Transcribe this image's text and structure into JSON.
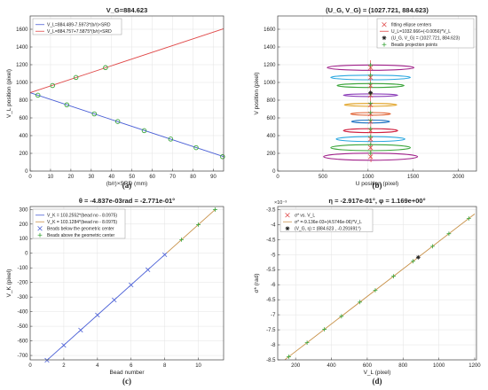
{
  "chart_data": [
    {
      "panel": "(a)",
      "type": "line",
      "title": "V_G=884.623",
      "xlabel": "(b/r)×SRD (mm)",
      "ylabel": "V_L position (pixel)",
      "xlim": [
        0,
        95
      ],
      "ylim": [
        0,
        1750
      ],
      "xticks": [
        0,
        10,
        20,
        30,
        40,
        50,
        60,
        70,
        80,
        90
      ],
      "yticks": [
        0,
        200,
        400,
        600,
        800,
        1000,
        1200,
        1400,
        1600
      ],
      "grid": true,
      "legend": {
        "placement": "top-left",
        "entries": [
          {
            "label": "V_L=884.489-7.5973*(b/r)×SRD",
            "color": "#4a5fd6"
          },
          {
            "label": "V_L=884.757+7.5875*(b/r)×SRD",
            "color": "#e04848"
          }
        ]
      },
      "series": [
        {
          "kind": "line",
          "color": "#4a5fd6",
          "x": [
            0,
            95
          ],
          "y": [
            884.489,
            162.7
          ]
        },
        {
          "kind": "line",
          "color": "#e04848",
          "x": [
            0,
            95
          ],
          "y": [
            884.757,
            1605.6
          ]
        },
        {
          "kind": "points",
          "color": "#3aa53a",
          "marker": "o",
          "x": [
            3.8,
            11,
            22.5,
            37,
            18,
            31.5,
            43,
            56,
            69,
            81.5,
            94.5
          ],
          "y": [
            856,
            965,
            1056,
            1167,
            747,
            645,
            559,
            456,
            361,
            264,
            162
          ]
        }
      ]
    },
    {
      "panel": "(b)",
      "type": "scatter",
      "title": "(U_G, V_G) = (1027.721, 884.623)",
      "xlabel": "U position (pixel)",
      "ylabel": "V position (pixel)",
      "xlim": [
        0,
        2200
      ],
      "ylim": [
        0,
        1750
      ],
      "xticks": [
        0,
        500,
        1000,
        1500,
        2000
      ],
      "yticks": [
        0,
        200,
        400,
        600,
        800,
        1000,
        1200,
        1400,
        1600
      ],
      "grid": true,
      "legend": {
        "placement": "top-right",
        "entries": [
          {
            "label": "fitting ellipse centers",
            "color": "#e04848",
            "marker": "x"
          },
          {
            "label": "U_L=1032.666+(-0.0056)*V_L",
            "color": "#e04848",
            "marker": "line"
          },
          {
            "label": "(U_G, V_G) = (1027.721, 884.623)",
            "color": "#222222",
            "marker": "*"
          },
          {
            "label": "Beads projection points",
            "color": "#3aa53a",
            "marker": "+"
          }
        ]
      },
      "u_line": {
        "intercept": 1032.666,
        "slope": -0.0056
      },
      "center": {
        "u": 1027.721,
        "v": 884.623
      },
      "ellipses": [
        {
          "cu": 1028,
          "cv": 1167,
          "a": 480,
          "b": 30,
          "color": "#a0208a"
        },
        {
          "cu": 1028,
          "cv": 1056,
          "a": 440,
          "b": 26,
          "color": "#2ba7e0"
        },
        {
          "cu": 1028,
          "cv": 965,
          "a": 370,
          "b": 22,
          "color": "#3aa53a"
        },
        {
          "cu": 1028,
          "cv": 856,
          "a": 300,
          "b": 15,
          "color": "#8a3ab8"
        },
        {
          "cu": 1028,
          "cv": 747,
          "a": 290,
          "b": 16,
          "color": "#e0a020"
        },
        {
          "cu": 1028,
          "cv": 645,
          "a": 220,
          "b": 15,
          "color": "#e06030"
        },
        {
          "cu": 1028,
          "cv": 559,
          "a": 210,
          "b": 16,
          "color": "#1a6fc0"
        },
        {
          "cu": 1028,
          "cv": 456,
          "a": 300,
          "b": 22,
          "color": "#d02040"
        },
        {
          "cu": 1028,
          "cv": 361,
          "a": 380,
          "b": 28,
          "color": "#2ba7e0"
        },
        {
          "cu": 1028,
          "cv": 264,
          "a": 440,
          "b": 34,
          "color": "#3aa53a"
        },
        {
          "cu": 1028,
          "cv": 162,
          "a": 520,
          "b": 40,
          "color": "#a0208a"
        }
      ]
    },
    {
      "panel": "(c)",
      "type": "line",
      "title": "θ = -4.837e-03rad = -2.771e-01°",
      "xlabel": "Bead number",
      "ylabel": "V_K (pixel)",
      "xlim": [
        0,
        11.5
      ],
      "ylim": [
        -730,
        320
      ],
      "xticks": [
        0,
        2,
        4,
        6,
        8,
        10
      ],
      "yticks": [
        -700,
        -600,
        -500,
        -400,
        -300,
        -200,
        -100,
        0,
        100,
        200,
        300
      ],
      "grid": true,
      "legend": {
        "placement": "top-left",
        "entries": [
          {
            "label": "V_K = 103.2552*(bead no - 8.0975)",
            "color": "#4a5fd6",
            "marker": "line"
          },
          {
            "label": "V_K = 103.1284*(bead no - 8.0975)",
            "color": "#c8924a",
            "marker": "line"
          },
          {
            "label": "Beads below the geometric center",
            "color": "#4a5fd6",
            "marker": "x"
          },
          {
            "label": "Beads above the geometric center",
            "color": "#3aa53a",
            "marker": "+"
          }
        ]
      },
      "series": [
        {
          "kind": "line",
          "color": "#4a5fd6",
          "x": [
            1,
            8.0975
          ],
          "y": [
            -732.8,
            0
          ]
        },
        {
          "kind": "line",
          "color": "#c8924a",
          "x": [
            8.0975,
            11
          ],
          "y": [
            0,
            299.3
          ]
        },
        {
          "kind": "points",
          "color": "#4a5fd6",
          "marker": "x",
          "x": [
            1,
            2,
            3,
            4,
            5,
            6,
            7,
            8
          ],
          "y": [
            -733,
            -630,
            -526,
            -423,
            -320,
            -217,
            -113,
            -10
          ]
        },
        {
          "kind": "points",
          "color": "#3aa53a",
          "marker": "+",
          "x": [
            9,
            10,
            11
          ],
          "y": [
            93,
            196,
            299
          ]
        }
      ]
    },
    {
      "panel": "(d)",
      "type": "line",
      "title": "η = -2.917e-01°,  φ = 1.169e+00°",
      "xlabel": "V_L (pixel)",
      "ylabel": "σ* (rad)",
      "scale_label": "×10⁻³",
      "xlim": [
        100,
        1210
      ],
      "ylim": [
        -8.5,
        -3.4
      ],
      "xticks": [
        200,
        400,
        600,
        800,
        1000,
        1200
      ],
      "yticks": [
        -8.5,
        -8,
        -7.5,
        -7,
        -6.5,
        -6,
        -5.5,
        -5,
        -4.5,
        -4,
        -3.5
      ],
      "grid": true,
      "legend": {
        "placement": "top-left",
        "entries": [
          {
            "label": "σ* vs. V_L",
            "color": "#e04848",
            "marker": "x"
          },
          {
            "label": "σ* =-9.136e-03+(4.5746e-06)*V_L",
            "color": "#c8924a",
            "marker": "line"
          },
          {
            "label": "(V_G, η) = (884.623 , -0.291691°)",
            "color": "#222222",
            "marker": "*"
          }
        ]
      },
      "series": [
        {
          "kind": "line",
          "color": "#c8924a",
          "x": [
            140,
            1200
          ],
          "y": [
            -8.495,
            -3.646
          ]
        },
        {
          "kind": "points",
          "color": "#3aa53a",
          "marker": "+",
          "x": [
            162,
            264,
            361,
            456,
            559,
            645,
            747,
            856,
            965,
            1056,
            1167
          ],
          "y": [
            -8.395,
            -7.928,
            -7.485,
            -7.05,
            -6.579,
            -6.185,
            -5.719,
            -5.22,
            -4.722,
            -4.305,
            -3.797
          ]
        }
      ],
      "highlight": {
        "x": 884.623,
        "y": -5.09
      }
    }
  ]
}
